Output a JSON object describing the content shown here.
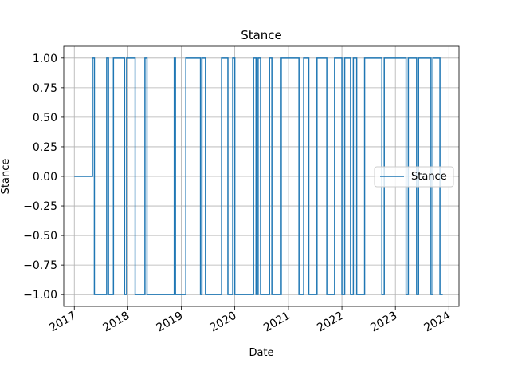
{
  "chart_data": {
    "type": "line",
    "title": "Stance",
    "xlabel": "Date",
    "ylabel": "Stance",
    "x_axis": "date",
    "xlim": [
      "2016-10-21",
      "2024-03-10"
    ],
    "ylim": [
      -1.1,
      1.1
    ],
    "x_ticks": [
      "2017",
      "2018",
      "2019",
      "2020",
      "2021",
      "2022",
      "2023",
      "2024"
    ],
    "x_tick_dates": [
      "2017-01-01",
      "2018-01-01",
      "2019-01-01",
      "2020-01-01",
      "2021-01-01",
      "2022-01-01",
      "2023-01-01",
      "2024-01-01"
    ],
    "y_ticks": [
      "1.00",
      "0.75",
      "0.50",
      "0.25",
      "0.00",
      "−0.25",
      "−0.50",
      "−0.75",
      "−1.00"
    ],
    "y_tick_values": [
      1,
      0.75,
      0.5,
      0.25,
      0,
      -0.25,
      -0.5,
      -0.75,
      -1
    ],
    "grid": true,
    "legend_position": "center-right",
    "series": [
      {
        "name": "Stance",
        "color": "#1f77b4",
        "step": true,
        "points": [
          [
            "2017-01-01",
            0
          ],
          [
            "2017-05-05",
            1
          ],
          [
            "2017-05-18",
            -1
          ],
          [
            "2017-08-10",
            1
          ],
          [
            "2017-08-22",
            -1
          ],
          [
            "2017-09-25",
            1
          ],
          [
            "2017-12-10",
            -1
          ],
          [
            "2017-12-24",
            1
          ],
          [
            "2018-02-20",
            -1
          ],
          [
            "2018-04-28",
            1
          ],
          [
            "2018-05-12",
            -1
          ],
          [
            "2018-11-14",
            1
          ],
          [
            "2018-11-22",
            -1
          ],
          [
            "2019-02-01",
            1
          ],
          [
            "2019-05-12",
            -1
          ],
          [
            "2019-05-22",
            1
          ],
          [
            "2019-06-15",
            -1
          ],
          [
            "2019-10-03",
            1
          ],
          [
            "2019-11-15",
            -1
          ],
          [
            "2019-12-18",
            1
          ],
          [
            "2020-01-01",
            -1
          ],
          [
            "2020-05-08",
            1
          ],
          [
            "2020-05-25",
            -1
          ],
          [
            "2020-06-08",
            1
          ],
          [
            "2020-06-25",
            -1
          ],
          [
            "2020-08-25",
            1
          ],
          [
            "2020-09-10",
            -1
          ],
          [
            "2020-11-13",
            1
          ],
          [
            "2021-03-14",
            -1
          ],
          [
            "2021-04-15",
            1
          ],
          [
            "2021-05-20",
            -1
          ],
          [
            "2021-07-15",
            1
          ],
          [
            "2021-09-20",
            -1
          ],
          [
            "2021-11-12",
            1
          ],
          [
            "2022-01-01",
            -1
          ],
          [
            "2022-01-20",
            1
          ],
          [
            "2022-03-01",
            -1
          ],
          [
            "2022-03-20",
            1
          ],
          [
            "2022-04-12",
            -1
          ],
          [
            "2022-06-05",
            1
          ],
          [
            "2022-10-01",
            -1
          ],
          [
            "2022-10-17",
            1
          ],
          [
            "2023-03-15",
            -1
          ],
          [
            "2023-03-30",
            1
          ],
          [
            "2023-05-26",
            -1
          ],
          [
            "2023-06-08",
            1
          ],
          [
            "2023-09-01",
            -1
          ],
          [
            "2023-09-14",
            1
          ],
          [
            "2023-11-01",
            -1
          ],
          [
            "2023-11-20",
            -1
          ]
        ]
      }
    ]
  }
}
